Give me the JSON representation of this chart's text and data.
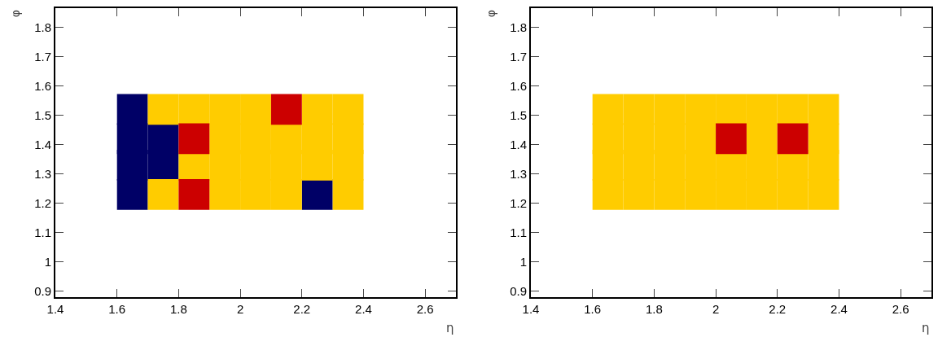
{
  "chart_data": [
    {
      "type": "scatter",
      "xlabel": "η",
      "ylabel": "φ",
      "marker": "square",
      "series": [
        {
          "color": "#000066",
          "x": [
            1.65,
            1.65,
            1.75,
            1.65,
            1.75,
            1.65,
            2.25
          ],
          "values": [
            1.52,
            1.42,
            1.42,
            1.33,
            1.33,
            1.23,
            1.23
          ]
        },
        {
          "color": "#ffcc00",
          "x": [
            1.75,
            1.85,
            1.95,
            2.05,
            2.25,
            2.35,
            1.95,
            2.05,
            2.15,
            2.25,
            2.35,
            1.85,
            1.95,
            2.05,
            2.15,
            2.25,
            2.35,
            1.75,
            1.95,
            2.05,
            2.15,
            2.35
          ],
          "values": [
            1.52,
            1.52,
            1.52,
            1.52,
            1.52,
            1.52,
            1.42,
            1.42,
            1.42,
            1.42,
            1.42,
            1.33,
            1.33,
            1.33,
            1.33,
            1.33,
            1.33,
            1.23,
            1.23,
            1.23,
            1.23,
            1.23
          ]
        },
        {
          "color": "#cc0000",
          "x": [
            2.15,
            1.85,
            1.85
          ],
          "values": [
            1.52,
            1.42,
            1.23
          ]
        }
      ],
      "xlim": [
        1.4,
        2.7
      ],
      "ylim": [
        0.88,
        1.865
      ],
      "xticks": [
        1.4,
        1.6,
        1.8,
        2,
        2.2,
        2.4,
        2.6
      ],
      "yticks": [
        0.9,
        1,
        1.1,
        1.2,
        1.3,
        1.4,
        1.5,
        1.6,
        1.7,
        1.8
      ]
    },
    {
      "type": "scatter",
      "xlabel": "η",
      "ylabel": "φ",
      "marker": "square",
      "series": [
        {
          "color": "#ffcc00",
          "x": [
            1.65,
            1.75,
            1.85,
            1.95,
            2.05,
            2.15,
            2.25,
            2.35,
            1.65,
            1.75,
            1.85,
            1.95,
            2.15,
            2.35,
            1.65,
            1.75,
            1.85,
            1.95,
            2.05,
            2.15,
            2.25,
            2.35,
            1.65,
            1.75,
            1.85,
            1.95,
            2.05,
            2.15,
            2.25,
            2.35
          ],
          "values": [
            1.52,
            1.52,
            1.52,
            1.52,
            1.52,
            1.52,
            1.52,
            1.52,
            1.42,
            1.42,
            1.42,
            1.42,
            1.42,
            1.42,
            1.33,
            1.33,
            1.33,
            1.33,
            1.33,
            1.33,
            1.33,
            1.33,
            1.23,
            1.23,
            1.23,
            1.23,
            1.23,
            1.23,
            1.23,
            1.23
          ]
        },
        {
          "color": "#cc0000",
          "x": [
            2.05,
            2.25
          ],
          "values": [
            1.42,
            1.42
          ]
        }
      ],
      "xlim": [
        1.4,
        2.7
      ],
      "ylim": [
        0.88,
        1.865
      ],
      "xticks": [
        1.4,
        1.6,
        1.8,
        2,
        2.2,
        2.4,
        2.6
      ],
      "yticks": [
        0.9,
        1,
        1.1,
        1.2,
        1.3,
        1.4,
        1.5,
        1.6,
        1.7,
        1.8
      ]
    }
  ]
}
